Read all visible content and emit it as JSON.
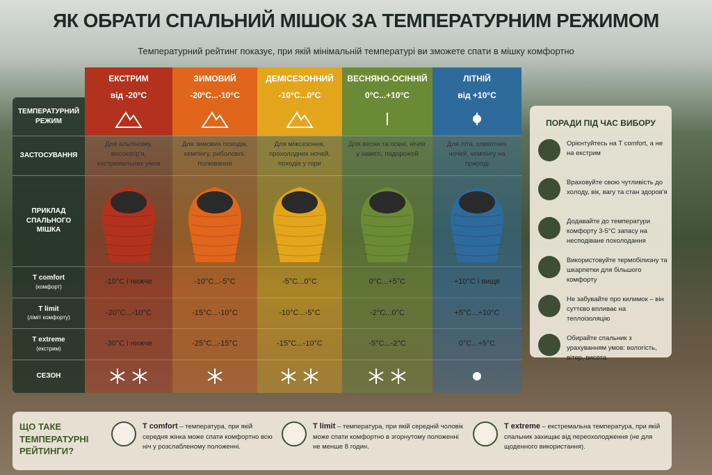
{
  "header": {
    "title": "ЯК ОБРАТИ СПАЛЬНИЙ МІШОК ЗА ТЕМПЕРАТУРНИМ РЕЖИМОМ",
    "subtitle": "Температурний рейтинг показує, при якій мінімальній температурі ви зможете спати в мішку комфортно"
  },
  "table": {
    "row_labels": [
      {
        "title": "ТЕМПЕРАТУРНИЙ РЕЖИМ"
      },
      {
        "title": "ЗАСТОСУВАННЯ"
      },
      {
        "title": "ПРИКЛАД СПАЛЬНОГО МІШКА"
      },
      {
        "title": "T comfort",
        "note": "(комфорт)"
      },
      {
        "title": "T limit",
        "note": "(ліміт комфорту)"
      },
      {
        "title": "T extreme",
        "note": "(екстрим)"
      },
      {
        "title": "СЕЗОН"
      }
    ],
    "columns": [
      {
        "name": "ЕКСТРИМ",
        "range": "від -20°C",
        "usage": "Для альпінізму, високогір'я, екстремальних умов",
        "comfort": "-10°C і нижче",
        "limit": "-20°C...-10°C",
        "extreme": "-30°C і нижче",
        "color": "#b3321d"
      },
      {
        "name": "ЗИМОВИЙ",
        "range": "-20°C...-10°C",
        "usage": "Для зимових походів, кемпінгу, риболовлі, полювання",
        "comfort": "-10°C...-5°C",
        "limit": "-15°C...-10°C",
        "extreme": "-25°C...-15°C",
        "color": "#e0661c"
      },
      {
        "name": "ДЕМІСЕЗОННИЙ",
        "range": "-10°C...0°C",
        "usage": "Для міжсезоння, прохолодних ночей, походів у гори",
        "comfort": "-5°C...0°C",
        "limit": "-10°C...-5°C",
        "extreme": "-15°C...-10°C",
        "color": "#e3a51b"
      },
      {
        "name": "ВЕСНЯНО-ОСІННІЙ",
        "range": "0°C...+10°C",
        "usage": "Для весни та осені, нічліг у наметі, подорожей",
        "comfort": "0°C...+5°C",
        "limit": "-2°C...0°C",
        "extreme": "-5°C...-2°C",
        "color": "#6b8a35"
      },
      {
        "name": "ЛІТНІЙ",
        "range": "від +10°C",
        "usage": "Для літа, спекотних ночей, кемпінгу на природі",
        "comfort": "+10°C і вище",
        "limit": "+5°C...+10°C",
        "extreme": "0°C...+5°C",
        "color": "#2f6a9c"
      }
    ]
  },
  "tips": {
    "title": "ПОРАДИ ПІД ЧАС ВИБОРУ",
    "items": [
      "Орієнтуйтесь на T comfort, а не на екстрим",
      "Враховуйте свою чутливість до холоду, вік, вагу та стан здоров'я",
      "Додавайте до температури комфорту 3-5°C запасу на несподіване похолодання",
      "Використовуйте термобілизну та шкарпетки для більшого комфорту",
      "Не забувайте про килимок – він суттєво впливає на теплоізоляцію",
      "Обирайте спальник з урахуванням умов: вологість, вітер, висота"
    ]
  },
  "footer": {
    "title": "ЩО ТАКЕ ТЕМПЕРАТУРНІ РЕЙТИНГИ?",
    "items": [
      {
        "term": "T comfort",
        "text": "– температура, при якій середня жінка може спати комфортно всю ніч у розслабленому положенні."
      },
      {
        "term": "T limit",
        "text": "– температура, при якій середній чоловік може спати комфортно в згорнутому положенні не менше 8 годин."
      },
      {
        "term": "T extreme",
        "text": "– екстремальна температура, при якій спальник захищає від переохолодження (не для щоденного використання)."
      }
    ]
  }
}
